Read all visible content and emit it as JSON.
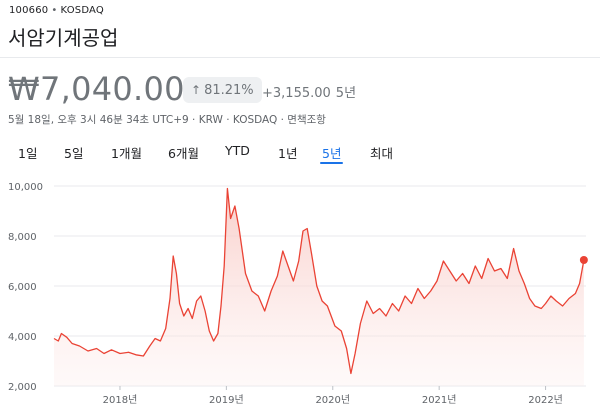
{
  "header": {
    "ticker_code": "100660",
    "ticker_separator": "•",
    "exchange": "KOSDAQ",
    "company_name": "서암기계공업"
  },
  "quote": {
    "price": "₩7,040.00",
    "change_arrow": "↑",
    "change_percent": "81.21%",
    "change_abs": "+3,155.00",
    "change_period": "5년",
    "meta": "5월 18일, 오후 3시 46분 34초 UTC+9 · KRW · KOSDAQ · 면책조항"
  },
  "range_tabs": [
    {
      "label": "1일",
      "active": false
    },
    {
      "label": "5일",
      "active": false
    },
    {
      "label": "1개월",
      "active": false
    },
    {
      "label": "6개월",
      "active": false
    },
    {
      "label": "YTD",
      "active": false
    },
    {
      "label": "1년",
      "active": false
    },
    {
      "label": "5년",
      "active": true
    },
    {
      "label": "최대",
      "active": false
    }
  ],
  "colors": {
    "line": "#ea4335",
    "fill_top": "#f8c9c4",
    "grid": "#e8eaed",
    "active_tab": "#1a73e8"
  },
  "chart_data": {
    "type": "area",
    "title": "",
    "xlabel": "",
    "ylabel": "",
    "ylim": [
      2000,
      10000
    ],
    "y_ticks": [
      "2,000",
      "4,000",
      "6,000",
      "8,000",
      "10,000"
    ],
    "y_tick_values": [
      2000,
      4000,
      6000,
      8000,
      10000
    ],
    "x_ticks": [
      {
        "label": "2018년",
        "t": 2018.0
      },
      {
        "label": "2019년",
        "t": 2019.0
      },
      {
        "label": "2020년",
        "t": 2020.0
      },
      {
        "label": "2021년",
        "t": 2021.0
      },
      {
        "label": "2022년",
        "t": 2022.0
      }
    ],
    "xlim": [
      2017.38,
      2022.38
    ],
    "grid": true,
    "series": [
      {
        "values": [
          [
            2017.38,
            3900
          ],
          [
            2017.42,
            3800
          ],
          [
            2017.45,
            4100
          ],
          [
            2017.5,
            3950
          ],
          [
            2017.55,
            3700
          ],
          [
            2017.62,
            3600
          ],
          [
            2017.7,
            3400
          ],
          [
            2017.78,
            3500
          ],
          [
            2017.85,
            3300
          ],
          [
            2017.92,
            3450
          ],
          [
            2018.0,
            3300
          ],
          [
            2018.08,
            3350
          ],
          [
            2018.15,
            3250
          ],
          [
            2018.22,
            3200
          ],
          [
            2018.28,
            3600
          ],
          [
            2018.33,
            3900
          ],
          [
            2018.38,
            3800
          ],
          [
            2018.43,
            4300
          ],
          [
            2018.47,
            5500
          ],
          [
            2018.5,
            7200
          ],
          [
            2018.53,
            6500
          ],
          [
            2018.56,
            5300
          ],
          [
            2018.6,
            4800
          ],
          [
            2018.64,
            5100
          ],
          [
            2018.68,
            4700
          ],
          [
            2018.72,
            5400
          ],
          [
            2018.76,
            5600
          ],
          [
            2018.8,
            5000
          ],
          [
            2018.84,
            4200
          ],
          [
            2018.88,
            3800
          ],
          [
            2018.92,
            4100
          ],
          [
            2018.95,
            5200
          ],
          [
            2018.98,
            6800
          ],
          [
            2019.01,
            9900
          ],
          [
            2019.04,
            8700
          ],
          [
            2019.08,
            9200
          ],
          [
            2019.12,
            8300
          ],
          [
            2019.18,
            6500
          ],
          [
            2019.24,
            5800
          ],
          [
            2019.3,
            5600
          ],
          [
            2019.36,
            5000
          ],
          [
            2019.42,
            5800
          ],
          [
            2019.48,
            6400
          ],
          [
            2019.53,
            7400
          ],
          [
            2019.58,
            6800
          ],
          [
            2019.63,
            6200
          ],
          [
            2019.68,
            7000
          ],
          [
            2019.72,
            8200
          ],
          [
            2019.76,
            8300
          ],
          [
            2019.8,
            7300
          ],
          [
            2019.85,
            6000
          ],
          [
            2019.9,
            5400
          ],
          [
            2019.95,
            5200
          ],
          [
            2020.02,
            4400
          ],
          [
            2020.08,
            4200
          ],
          [
            2020.13,
            3500
          ],
          [
            2020.17,
            2500
          ],
          [
            2020.21,
            3300
          ],
          [
            2020.26,
            4500
          ],
          [
            2020.32,
            5400
          ],
          [
            2020.38,
            4900
          ],
          [
            2020.44,
            5100
          ],
          [
            2020.5,
            4800
          ],
          [
            2020.56,
            5300
          ],
          [
            2020.62,
            5000
          ],
          [
            2020.68,
            5600
          ],
          [
            2020.74,
            5300
          ],
          [
            2020.8,
            5900
          ],
          [
            2020.86,
            5500
          ],
          [
            2020.92,
            5800
          ],
          [
            2020.98,
            6200
          ],
          [
            2021.04,
            7000
          ],
          [
            2021.1,
            6600
          ],
          [
            2021.16,
            6200
          ],
          [
            2021.22,
            6500
          ],
          [
            2021.28,
            6100
          ],
          [
            2021.34,
            6800
          ],
          [
            2021.4,
            6300
          ],
          [
            2021.46,
            7100
          ],
          [
            2021.52,
            6600
          ],
          [
            2021.58,
            6700
          ],
          [
            2021.64,
            6300
          ],
          [
            2021.7,
            7500
          ],
          [
            2021.75,
            6600
          ],
          [
            2021.8,
            6100
          ],
          [
            2021.85,
            5500
          ],
          [
            2021.9,
            5200
          ],
          [
            2021.96,
            5100
          ],
          [
            2022.0,
            5300
          ],
          [
            2022.05,
            5600
          ],
          [
            2022.1,
            5400
          ],
          [
            2022.16,
            5200
          ],
          [
            2022.22,
            5500
          ],
          [
            2022.28,
            5700
          ],
          [
            2022.32,
            6100
          ],
          [
            2022.36,
            7040
          ]
        ]
      }
    ]
  }
}
